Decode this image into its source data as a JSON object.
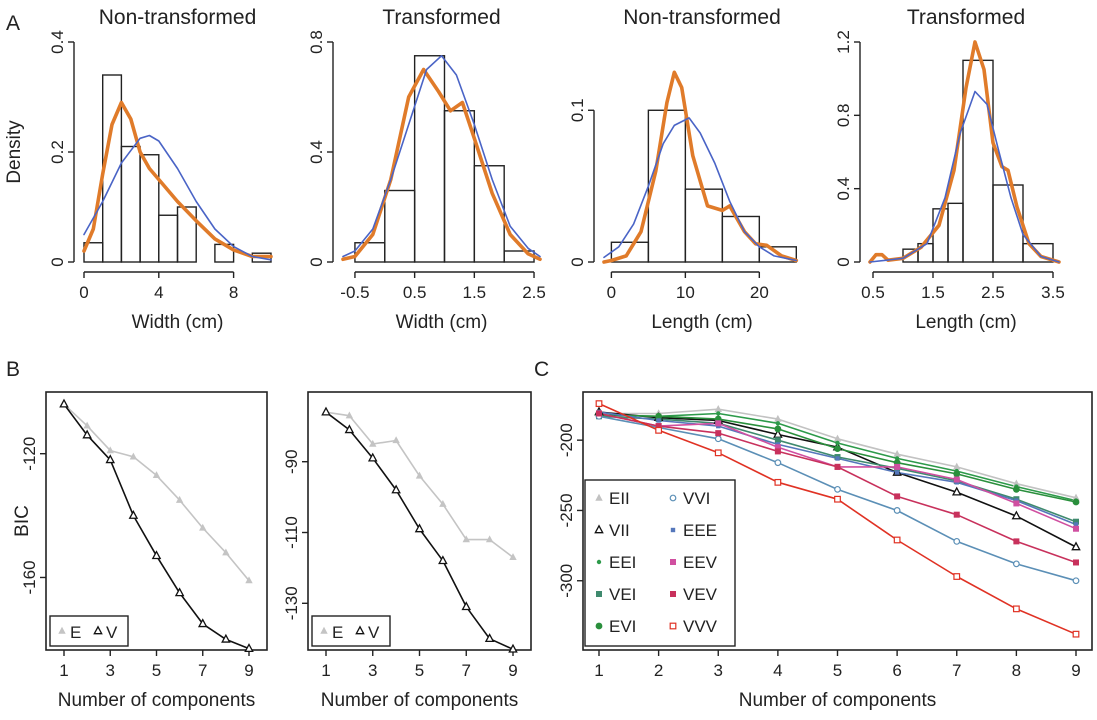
{
  "panel_labels": [
    "A",
    "B",
    "C"
  ],
  "chart_data": [
    {
      "id": "a1",
      "type": "histogram",
      "title": "Non-transformed",
      "xlabel": "Width (cm)",
      "ylabel": "Density",
      "xlim": [
        0,
        10
      ],
      "ylim": [
        0,
        0.4
      ],
      "xticks": [
        0,
        4,
        8
      ],
      "yticks": [
        0,
        0.2,
        0.4
      ],
      "bins": [
        [
          0,
          1,
          0.035
        ],
        [
          1,
          2,
          0.34
        ],
        [
          2,
          3,
          0.21
        ],
        [
          3,
          4,
          0.195
        ],
        [
          4,
          5,
          0.085
        ],
        [
          5,
          6,
          0.1
        ],
        [
          6,
          7,
          0.0
        ],
        [
          7,
          8,
          0.032
        ],
        [
          8,
          9,
          0.0
        ],
        [
          9,
          10,
          0.016
        ]
      ],
      "series": [
        {
          "kind": "kernel-density",
          "color": "#e07b2a",
          "points": [
            [
              0,
              0.02
            ],
            [
              0.5,
              0.06
            ],
            [
              1,
              0.16
            ],
            [
              1.5,
              0.25
            ],
            [
              2,
              0.29
            ],
            [
              2.5,
              0.26
            ],
            [
              3,
              0.2
            ],
            [
              3.5,
              0.17
            ],
            [
              4,
              0.15
            ],
            [
              5,
              0.11
            ],
            [
              6,
              0.075
            ],
            [
              7,
              0.042
            ],
            [
              8,
              0.022
            ],
            [
              9,
              0.01
            ],
            [
              10,
              0.01
            ]
          ]
        },
        {
          "kind": "normal-fit",
          "color": "#4a64c6",
          "points": [
            [
              0,
              0.05
            ],
            [
              1,
              0.11
            ],
            [
              2,
              0.18
            ],
            [
              3,
              0.225
            ],
            [
              3.5,
              0.23
            ],
            [
              4,
              0.22
            ],
            [
              5,
              0.17
            ],
            [
              6,
              0.11
            ],
            [
              7,
              0.06
            ],
            [
              8,
              0.028
            ],
            [
              9,
              0.01
            ],
            [
              10,
              0.004
            ]
          ]
        }
      ]
    },
    {
      "id": "a2",
      "type": "histogram",
      "title": "Transformed",
      "xlabel": "Width (cm)",
      "ylabel": "",
      "xlim": [
        -0.7,
        2.6
      ],
      "ylim": [
        0,
        0.8
      ],
      "xticks": [
        -0.5,
        0.5,
        1.5,
        2.5
      ],
      "xticklabels": [
        "-0.5",
        "0.5",
        "1.5",
        "2.5"
      ],
      "yticks": [
        0,
        0.4,
        0.8
      ],
      "bins": [
        [
          -0.5,
          0,
          0.07
        ],
        [
          0,
          0.5,
          0.26
        ],
        [
          0.5,
          1,
          0.75
        ],
        [
          1,
          1.5,
          0.55
        ],
        [
          1.5,
          2,
          0.35
        ],
        [
          2,
          2.5,
          0.04
        ]
      ],
      "series": [
        {
          "kind": "kernel-density",
          "color": "#e07b2a",
          "points": [
            [
              -0.7,
              0.01
            ],
            [
              -0.5,
              0.02
            ],
            [
              -0.2,
              0.1
            ],
            [
              0.1,
              0.3
            ],
            [
              0.4,
              0.6
            ],
            [
              0.65,
              0.7
            ],
            [
              0.9,
              0.62
            ],
            [
              1.1,
              0.55
            ],
            [
              1.3,
              0.58
            ],
            [
              1.5,
              0.45
            ],
            [
              1.8,
              0.25
            ],
            [
              2.1,
              0.1
            ],
            [
              2.4,
              0.03
            ],
            [
              2.6,
              0.01
            ]
          ]
        },
        {
          "kind": "normal-fit",
          "color": "#4a64c6",
          "points": [
            [
              -0.7,
              0.02
            ],
            [
              -0.5,
              0.04
            ],
            [
              -0.2,
              0.12
            ],
            [
              0.1,
              0.3
            ],
            [
              0.4,
              0.5
            ],
            [
              0.7,
              0.7
            ],
            [
              0.95,
              0.75
            ],
            [
              1.2,
              0.68
            ],
            [
              1.5,
              0.5
            ],
            [
              1.8,
              0.3
            ],
            [
              2.1,
              0.13
            ],
            [
              2.4,
              0.05
            ],
            [
              2.6,
              0.02
            ]
          ]
        }
      ]
    },
    {
      "id": "a3",
      "type": "histogram",
      "title": "Non-transformed",
      "xlabel": "Length (cm)",
      "ylabel": "",
      "xlim": [
        -1,
        25.5
      ],
      "ylim": [
        0,
        0.145
      ],
      "xticks": [
        0,
        10,
        20
      ],
      "yticks": [
        0,
        0.1
      ],
      "yticklabels": [
        "0",
        "0.1"
      ],
      "bins": [
        [
          0,
          5,
          0.013
        ],
        [
          5,
          10,
          0.1
        ],
        [
          10,
          15,
          0.048
        ],
        [
          15,
          20,
          0.03
        ],
        [
          20,
          25,
          0.01
        ]
      ],
      "series": [
        {
          "kind": "kernel-density",
          "color": "#e07b2a",
          "points": [
            [
              -1,
              0.0
            ],
            [
              0,
              0.001
            ],
            [
              2,
              0.004
            ],
            [
              4,
              0.02
            ],
            [
              6,
              0.06
            ],
            [
              7.5,
              0.105
            ],
            [
              8.5,
              0.125
            ],
            [
              9.5,
              0.115
            ],
            [
              11,
              0.07
            ],
            [
              13,
              0.037
            ],
            [
              15,
              0.034
            ],
            [
              16,
              0.037
            ],
            [
              18,
              0.02
            ],
            [
              19.5,
              0.012
            ],
            [
              21,
              0.011
            ],
            [
              23,
              0.004
            ],
            [
              25,
              0.001
            ]
          ]
        },
        {
          "kind": "normal-fit",
          "color": "#4a64c6",
          "points": [
            [
              -1,
              0.003
            ],
            [
              1,
              0.01
            ],
            [
              3,
              0.025
            ],
            [
              5,
              0.05
            ],
            [
              7,
              0.078
            ],
            [
              8.5,
              0.09
            ],
            [
              10.5,
              0.095
            ],
            [
              12,
              0.085
            ],
            [
              14,
              0.065
            ],
            [
              16,
              0.04
            ],
            [
              18,
              0.02
            ],
            [
              20,
              0.01
            ],
            [
              22,
              0.004
            ],
            [
              25,
              0.001
            ]
          ]
        }
      ]
    },
    {
      "id": "a4",
      "type": "histogram",
      "title": "Transformed",
      "xlabel": "Length (cm)",
      "ylabel": "",
      "xlim": [
        0.45,
        3.65
      ],
      "ylim": [
        0,
        1.2
      ],
      "xticks": [
        0.5,
        1.5,
        2.5,
        3.5
      ],
      "xticklabels": [
        "0.5",
        "1.5",
        "2.5",
        "3.5"
      ],
      "yticks": [
        0,
        0.4,
        0.8,
        1.2
      ],
      "bins": [
        [
          1,
          1.25,
          0.07
        ],
        [
          1.25,
          1.5,
          0.1
        ],
        [
          1.5,
          1.75,
          0.29
        ],
        [
          1.75,
          2,
          0.32
        ],
        [
          2,
          2.5,
          1.1
        ],
        [
          2.5,
          3,
          0.42
        ],
        [
          3,
          3.5,
          0.1
        ]
      ],
      "series": [
        {
          "kind": "kernel-density",
          "color": "#e07b2a",
          "points": [
            [
              0.45,
              0.0
            ],
            [
              0.55,
              0.04
            ],
            [
              0.65,
              0.04
            ],
            [
              0.75,
              0.01
            ],
            [
              1.0,
              0.02
            ],
            [
              1.3,
              0.08
            ],
            [
              1.6,
              0.2
            ],
            [
              1.85,
              0.5
            ],
            [
              2.05,
              0.95
            ],
            [
              2.2,
              1.2
            ],
            [
              2.35,
              1.05
            ],
            [
              2.5,
              0.65
            ],
            [
              2.65,
              0.52
            ],
            [
              2.75,
              0.5
            ],
            [
              2.9,
              0.3
            ],
            [
              3.1,
              0.1
            ],
            [
              3.3,
              0.03
            ],
            [
              3.6,
              0.0
            ]
          ]
        },
        {
          "kind": "normal-fit",
          "color": "#4a64c6",
          "points": [
            [
              0.45,
              0.0
            ],
            [
              1.0,
              0.02
            ],
            [
              1.4,
              0.1
            ],
            [
              1.7,
              0.35
            ],
            [
              1.95,
              0.7
            ],
            [
              2.2,
              0.93
            ],
            [
              2.4,
              0.86
            ],
            [
              2.6,
              0.6
            ],
            [
              2.8,
              0.35
            ],
            [
              3.0,
              0.15
            ],
            [
              3.3,
              0.03
            ],
            [
              3.6,
              0.0
            ]
          ]
        }
      ]
    },
    {
      "id": "b1",
      "type": "line",
      "xlabel": "Number of components",
      "ylabel": "BIC",
      "xlim": [
        1,
        9
      ],
      "ylim": [
        -181.5,
        -102
      ],
      "xticks": [
        1,
        3,
        5,
        7,
        9
      ],
      "yticks": [
        -160,
        -120
      ],
      "legend": "bottom-left",
      "x": [
        1,
        2,
        3,
        4,
        5,
        6,
        7,
        8,
        9
      ],
      "series": [
        {
          "name": "E",
          "color": "#c4c4c4",
          "marker": "triangle-filled",
          "values": [
            -104,
            -111,
            -119,
            -121,
            -127,
            -135,
            -144,
            -152,
            -161
          ]
        },
        {
          "name": "V",
          "color": "#111111",
          "marker": "triangle-open",
          "values": [
            -104,
            -114,
            -122,
            -140,
            -153,
            -165,
            -175,
            -180,
            -183
          ]
        }
      ]
    },
    {
      "id": "b2",
      "type": "line",
      "xlabel": "Number of components",
      "ylabel": "",
      "xlim": [
        1,
        9
      ],
      "ylim": [
        -141.5,
        -72
      ],
      "xticks": [
        1,
        3,
        5,
        7,
        9
      ],
      "yticks": [
        -130,
        -110,
        -90
      ],
      "legend": "bottom-left",
      "x": [
        1,
        2,
        3,
        4,
        5,
        6,
        7,
        8,
        9
      ],
      "series": [
        {
          "name": "E",
          "color": "#c4c4c4",
          "marker": "triangle-filled",
          "values": [
            -76,
            -77,
            -85,
            -84,
            -94,
            -102,
            -112,
            -112,
            -117
          ]
        },
        {
          "name": "V",
          "color": "#111111",
          "marker": "triangle-open",
          "values": [
            -76,
            -81,
            -89,
            -98,
            -109,
            -118,
            -131,
            -140,
            -143
          ]
        }
      ]
    },
    {
      "id": "c",
      "type": "line",
      "xlabel": "Number of components",
      "ylabel": "",
      "xlim": [
        1,
        9
      ],
      "ylim": [
        -345,
        -170
      ],
      "xticks": [
        1,
        2,
        3,
        4,
        5,
        6,
        7,
        8,
        9
      ],
      "yticks": [
        -300,
        -250,
        -200
      ],
      "legend": "left",
      "x": [
        1,
        2,
        3,
        4,
        5,
        6,
        7,
        8,
        9
      ],
      "series": [
        {
          "name": "EII",
          "color": "#c2c2c2",
          "marker": "triangle-filled",
          "values": [
            -181,
            -181,
            -178,
            -185,
            -199,
            -210,
            -219,
            -231,
            -241
          ]
        },
        {
          "name": "VII",
          "color": "#111111",
          "marker": "triangle-open",
          "values": [
            -180,
            -184,
            -186,
            -196,
            -205,
            -223,
            -237,
            -254,
            -276
          ]
        },
        {
          "name": "EEI",
          "color": "#2d9a4a",
          "marker": "dot",
          "values": [
            -182,
            -183,
            -181,
            -188,
            -202,
            -213,
            -222,
            -233,
            -243
          ]
        },
        {
          "name": "VEI",
          "color": "#3f8a6e",
          "marker": "square-filled",
          "values": [
            -183,
            -185,
            -188,
            -200,
            -212,
            -220,
            -229,
            -242,
            -258
          ]
        },
        {
          "name": "EVI",
          "color": "#2a8f3c",
          "marker": "circle-filled",
          "values": [
            -182,
            -183,
            -185,
            -192,
            -206,
            -216,
            -224,
            -235,
            -244
          ]
        },
        {
          "name": "VVI",
          "color": "#5b8fb6",
          "marker": "circle-open",
          "values": [
            -183,
            -191,
            -199,
            -216,
            -235,
            -250,
            -272,
            -288,
            -300
          ]
        },
        {
          "name": "EEE",
          "color": "#5577bb",
          "marker": "square-small",
          "values": [
            -180,
            -186,
            -190,
            -203,
            -213,
            -223,
            -230,
            -243,
            -260
          ]
        },
        {
          "name": "EEV",
          "color": "#d04fa0",
          "marker": "square-filled",
          "values": [
            -181,
            -190,
            -188,
            -205,
            -219,
            -219,
            -228,
            -245,
            -263
          ]
        },
        {
          "name": "VEV",
          "color": "#c8315c",
          "marker": "square-filled",
          "values": [
            -181,
            -190,
            -195,
            -208,
            -219,
            -240,
            -253,
            -272,
            -287
          ]
        },
        {
          "name": "VVV",
          "color": "#e03224",
          "marker": "square-open",
          "values": [
            -174,
            -193,
            -209,
            -230,
            -242,
            -271,
            -297,
            -320,
            -338
          ]
        }
      ]
    }
  ]
}
